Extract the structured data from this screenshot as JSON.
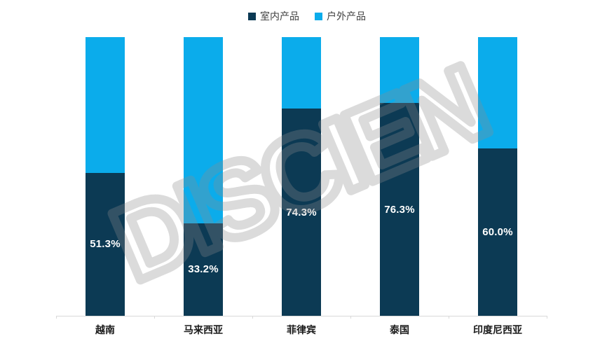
{
  "legend": {
    "items": [
      {
        "label": "室内产品",
        "color": "#0C3A54"
      },
      {
        "label": "户外产品",
        "color": "#0BACEB"
      }
    ]
  },
  "watermark": {
    "text": "DISCIEN"
  },
  "chart_data": {
    "type": "bar",
    "variant": "stacked-100-percent-column",
    "categories": [
      "越南",
      "马来西亚",
      "菲律宾",
      "泰国",
      "印度尼西亚"
    ],
    "series": [
      {
        "name": "室内产品",
        "color": "#0C3A54",
        "values": [
          51.3,
          33.2,
          74.3,
          76.3,
          60.0
        ],
        "data_labels": [
          "51.3%",
          "33.2%",
          "74.3%",
          "76.3%",
          "60.0%"
        ]
      },
      {
        "name": "户外产品",
        "color": "#0BACEB",
        "values": [
          48.7,
          66.8,
          25.7,
          23.7,
          40.0
        ],
        "data_labels": []
      }
    ],
    "title": "",
    "xlabel": "",
    "ylabel": "",
    "ylim": [
      0,
      100
    ],
    "grid": false,
    "legend_position": "top-center",
    "axis_color": "#D9D9D9"
  }
}
